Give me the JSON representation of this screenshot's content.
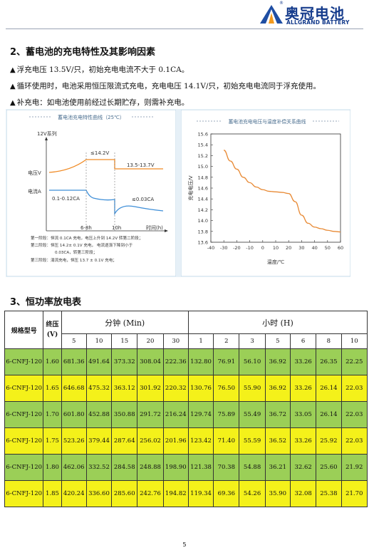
{
  "header": {
    "brand_cn": "奥冠电池",
    "brand_en": "ALLGRAND BATTERY",
    "registered": "®"
  },
  "section2": {
    "title": "2、蓄电池的充电特性及其影响因素",
    "lines": [
      "浮充电压 13.5V/只，初始充电电流不大于 0.1CA。",
      "循环使用时，电池采用恒压限流式充电，充电电压 14.1V/只，初始充电电流同于浮充使用。",
      "补充电：如电池使用前经过长期贮存，则需补充电。"
    ],
    "bullet": "▲"
  },
  "chart_left": {
    "title": "蓄电池充电特性曲线（25℃）",
    "series_label": "12V系列",
    "voltage_label": "电压V",
    "current_label": "电流A",
    "annotations": {
      "le14_2": "≤14.2V",
      "range": "13.5-13.7V",
      "cur_range": "0.1-0.12CA",
      "le003": "≤0.03CA",
      "t1": "6-8h",
      "t2": "10h",
      "xaxis": "时间(h)"
    },
    "notes": [
      "第一阶段：恒流 0.1CA 充电，电压上升到 14.2V 转第二阶段；",
      "第二阶段：恒压 14.2± 0.1V 充电，  电流逐渐下降到小于",
      "0.03CA，转第三阶段；",
      "第三阶段：涓流充电，恒压 13.7 ± 0.1V 充电；"
    ]
  },
  "chart_data": {
    "type": "line",
    "title": "蓄电池充电电压与温度补偿关系曲线",
    "xlabel": "温度/℃",
    "ylabel": "充电电压/V",
    "xlim": [
      -40,
      60
    ],
    "ylim": [
      13.6,
      15.6
    ],
    "xticks": [
      -40,
      -30,
      -20,
      -10,
      0,
      10,
      20,
      30,
      40,
      50,
      60
    ],
    "yticks": [
      13.6,
      13.8,
      14.0,
      14.2,
      14.4,
      14.6,
      14.8,
      15.0,
      15.2,
      15.4,
      15.6
    ],
    "x": [
      -30,
      -25,
      -20,
      -15,
      -10,
      -5,
      0,
      5,
      10,
      15,
      20,
      25,
      30,
      35,
      40,
      45,
      50,
      55,
      60
    ],
    "y": [
      15.3,
      15.1,
      14.95,
      14.8,
      14.7,
      14.62,
      14.57,
      14.54,
      14.53,
      14.52,
      14.5,
      14.35,
      14.1,
      13.95,
      13.88,
      13.85,
      13.82,
      13.8,
      13.79
    ],
    "color": "#e88a35"
  },
  "section3": {
    "title": "3、恒功率放电表",
    "headers": {
      "model": "规格型号",
      "voltage": "终压(V)",
      "minutes": "分钟 (Min)",
      "hours": "小时 (H)"
    },
    "min_cols": [
      "5",
      "10",
      "15",
      "20",
      "30"
    ],
    "hour_cols": [
      "1",
      "2",
      "3",
      "5",
      "6",
      "8",
      "10"
    ],
    "rows": [
      {
        "model": "6-CNFJ-120",
        "v": "1.60",
        "vals": [
          "681.36",
          "491.64",
          "373.32",
          "308.04",
          "222.36",
          "132.80",
          "76.91",
          "56.10",
          "36.92",
          "33.26",
          "26.35",
          "22.25"
        ]
      },
      {
        "model": "6-CNFJ-120",
        "v": "1.65",
        "vals": [
          "646.68",
          "475.32",
          "363.12",
          "301.92",
          "220.32",
          "130.76",
          "76.50",
          "55.90",
          "36.92",
          "33.26",
          "26.14",
          "22.03"
        ]
      },
      {
        "model": "6-CNFJ-120",
        "v": "1.70",
        "vals": [
          "601.80",
          "452.88",
          "350.88",
          "291.72",
          "216.24",
          "129.74",
          "75.89",
          "55.49",
          "36.72",
          "33.05",
          "26.14",
          "22.03"
        ]
      },
      {
        "model": "6-CNFJ-120",
        "v": "1.75",
        "vals": [
          "523.26",
          "379.44",
          "287.64",
          "256.02",
          "201.96",
          "123.42",
          "71.40",
          "55.59",
          "36.52",
          "33.26",
          "25.92",
          "22.03"
        ]
      },
      {
        "model": "6-CNFJ-120",
        "v": "1.80",
        "vals": [
          "462.06",
          "332.52",
          "284.58",
          "248.88",
          "198.90",
          "121.38",
          "70.38",
          "54.88",
          "36.21",
          "32.62",
          "25.60",
          "21.92"
        ]
      },
      {
        "model": "6-CNFJ-120",
        "v": "1.85",
        "vals": [
          "420.24",
          "336.60",
          "285.60",
          "242.76",
          "194.82",
          "119.34",
          "69.36",
          "54.26",
          "35.90",
          "32.08",
          "25.38",
          "21.70"
        ]
      }
    ]
  },
  "page_number": "5"
}
